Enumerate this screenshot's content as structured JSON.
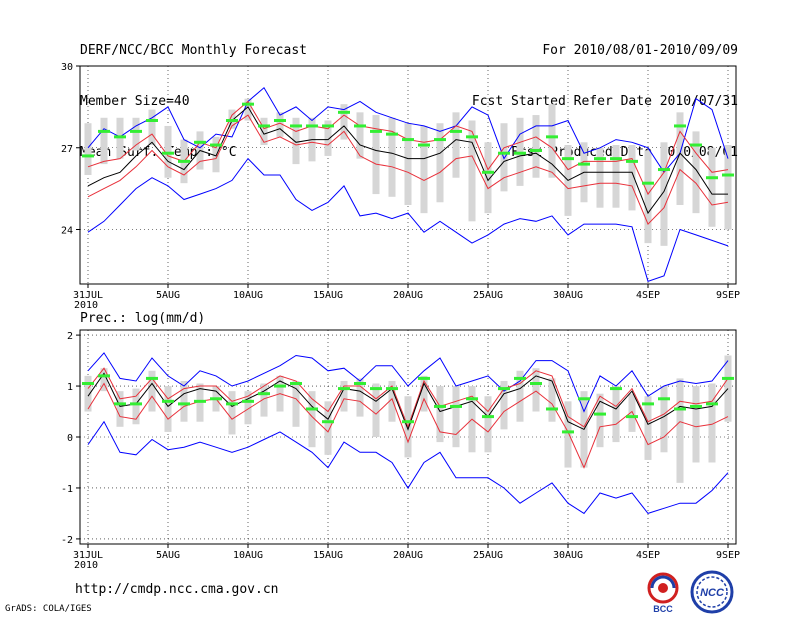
{
  "header": {
    "title": "DERF/NCC/BCC Monthly Forecast",
    "member_size": "Member Size=40",
    "variable": "Mean Surf. Temp.: °C",
    "forecast_period": "For 2010/08/01-2010/09/09",
    "started_refer": "Fcst Started Refer Date 2010/07/31",
    "produced": "Fcst Produced Date 2010/08/01"
  },
  "footer": {
    "url": "http://cmdp.ncc.cma.gov.cn",
    "grads": "GrADS: COLA/IGES",
    "logo_bcc_text": "BCC",
    "logo_ncc_text": "NCC"
  },
  "colors": {
    "blue": "#0000ff",
    "red": "#e8303a",
    "black": "#000000",
    "green": "#33ee33",
    "gray": "#d6d6d6"
  },
  "chart_data": [
    {
      "type": "line",
      "title": "Mean Surf. Temp.: °C",
      "xlabel": "",
      "ylabel": "",
      "x_ticks": [
        "31JUL",
        "5AUG",
        "10AUG",
        "15AUG",
        "20AUG",
        "25AUG",
        "30AUG",
        "4SEP",
        "9SEP"
      ],
      "x_year": "2010",
      "yticks": [
        24,
        27,
        30
      ],
      "ylim": [
        22,
        30
      ],
      "n_days": 41,
      "series": [
        {
          "name": "max",
          "color": "blue",
          "values": [
            27.0,
            27.7,
            27.4,
            27.8,
            28.1,
            28.5,
            27.3,
            27.0,
            27.5,
            27.4,
            28.7,
            29.2,
            28.2,
            28.5,
            28.0,
            28.5,
            28.4,
            28.7,
            28.3,
            28.1,
            27.9,
            27.8,
            27.6,
            27.8,
            28.5,
            28.2,
            26.6,
            27.5,
            27.8,
            27.8,
            28.0,
            26.8,
            27.0,
            27.3,
            27.2,
            27.0,
            26.1,
            26.8,
            28.8,
            28.4,
            26.6
          ]
        },
        {
          "name": "upper",
          "color": "red",
          "values": [
            26.3,
            26.5,
            26.6,
            27.1,
            27.5,
            26.7,
            26.5,
            27.2,
            27.0,
            28.2,
            28.7,
            27.7,
            27.9,
            27.6,
            27.8,
            27.7,
            28.2,
            27.8,
            27.7,
            27.6,
            27.3,
            27.2,
            27.3,
            27.8,
            27.6,
            26.2,
            27.0,
            27.2,
            27.4,
            27.0,
            26.2,
            26.5,
            26.5,
            26.5,
            26.6,
            25.3,
            26.1,
            27.6,
            26.8,
            26.1,
            26.2
          ]
        },
        {
          "name": "mean",
          "color": "black",
          "values": [
            25.6,
            25.9,
            26.1,
            26.7,
            27.2,
            26.5,
            26.2,
            26.9,
            26.7,
            28.0,
            28.5,
            27.5,
            27.7,
            27.2,
            27.3,
            27.3,
            27.8,
            27.1,
            26.9,
            26.8,
            26.6,
            26.6,
            26.8,
            27.3,
            27.2,
            25.8,
            26.5,
            26.7,
            26.8,
            26.4,
            25.8,
            26.1,
            26.1,
            26.1,
            26.1,
            24.6,
            25.4,
            26.8,
            26.2,
            25.3,
            25.3
          ]
        },
        {
          "name": "lower",
          "color": "red",
          "values": [
            25.2,
            25.5,
            25.8,
            26.3,
            26.9,
            26.3,
            26.0,
            26.5,
            26.6,
            27.8,
            28.2,
            27.2,
            27.4,
            27.1,
            27.2,
            27.1,
            27.6,
            26.7,
            26.4,
            26.3,
            26.1,
            25.8,
            26.1,
            26.6,
            26.7,
            25.5,
            25.9,
            26.1,
            26.3,
            26.1,
            25.5,
            25.6,
            25.7,
            25.7,
            25.6,
            24.2,
            24.8,
            26.2,
            25.7,
            24.9,
            25.0
          ]
        },
        {
          "name": "min",
          "color": "blue",
          "values": [
            23.9,
            24.3,
            24.9,
            25.5,
            25.9,
            25.6,
            25.1,
            25.3,
            25.5,
            25.8,
            26.6,
            26.0,
            26.0,
            25.1,
            24.7,
            25.0,
            25.6,
            24.5,
            24.6,
            24.4,
            24.6,
            23.9,
            24.3,
            23.9,
            23.5,
            23.8,
            24.2,
            24.4,
            24.3,
            24.5,
            23.8,
            24.2,
            24.2,
            24.2,
            24.1,
            22.1,
            22.3,
            24.0,
            23.8,
            23.6,
            23.4
          ]
        },
        {
          "name": "median",
          "color": "green",
          "values": [
            26.7,
            27.6,
            27.4,
            27.6,
            28.0,
            26.8,
            26.5,
            27.2,
            27.1,
            28.0,
            28.6,
            27.8,
            28.0,
            27.8,
            27.8,
            27.8,
            28.3,
            27.8,
            27.6,
            27.5,
            27.3,
            27.1,
            27.3,
            27.6,
            27.4,
            26.1,
            26.8,
            26.8,
            26.9,
            27.4,
            26.6,
            26.4,
            26.6,
            26.6,
            26.5,
            25.7,
            26.2,
            27.8,
            27.1,
            25.9,
            26.0
          ]
        }
      ],
      "range_bars": {
        "color": "gray",
        "low": [
          26.0,
          26.4,
          26.6,
          26.9,
          27.1,
          25.9,
          25.7,
          26.2,
          26.1,
          27.7,
          28.0,
          27.1,
          27.4,
          26.4,
          26.5,
          26.7,
          27.3,
          26.6,
          25.3,
          25.2,
          24.9,
          24.6,
          25.0,
          25.9,
          24.3,
          24.6,
          25.4,
          25.6,
          25.9,
          25.9,
          24.5,
          25.0,
          24.8,
          24.8,
          24.7,
          23.5,
          23.4,
          24.9,
          24.6,
          24.1,
          24.0
        ],
        "high": [
          27.9,
          28.1,
          28.1,
          28.1,
          28.4,
          27.8,
          27.3,
          27.6,
          27.4,
          28.4,
          28.8,
          28.1,
          28.3,
          28.1,
          28.1,
          28.0,
          28.6,
          28.3,
          28.2,
          28.1,
          27.9,
          27.8,
          27.9,
          28.3,
          28.0,
          27.2,
          27.9,
          28.1,
          28.2,
          28.6,
          27.1,
          27.2,
          27.0,
          27.1,
          27.1,
          26.9,
          27.2,
          28.3,
          27.6,
          27.0,
          27.1
        ]
      }
    },
    {
      "type": "line",
      "title": "Prec.: log(mm/d)",
      "xlabel": "",
      "ylabel": "",
      "x_ticks": [
        "31JUL",
        "5AUG",
        "10AUG",
        "15AUG",
        "20AUG",
        "25AUG",
        "30AUG",
        "4SEP",
        "9SEP"
      ],
      "x_year": "2010",
      "yticks": [
        -2,
        -1,
        0,
        1,
        2
      ],
      "ylim": [
        -2.1,
        2.1
      ],
      "n_days": 41,
      "series": [
        {
          "name": "max",
          "color": "blue",
          "values": [
            1.3,
            1.65,
            1.15,
            1.1,
            1.55,
            1.2,
            1.0,
            1.3,
            1.2,
            1.0,
            1.1,
            1.25,
            1.4,
            1.6,
            1.55,
            1.3,
            1.35,
            1.1,
            1.4,
            1.4,
            1.0,
            1.3,
            1.55,
            1.0,
            1.1,
            1.2,
            0.9,
            1.1,
            1.5,
            1.5,
            1.3,
            0.5,
            1.2,
            1.0,
            1.3,
            0.8,
            1.0,
            1.1,
            1.05,
            1.1,
            1.5
          ]
        },
        {
          "name": "upper",
          "color": "red",
          "values": [
            0.95,
            1.35,
            0.75,
            0.8,
            1.15,
            0.75,
            0.95,
            1.0,
            1.0,
            0.7,
            0.8,
            1.0,
            1.2,
            1.1,
            0.75,
            0.5,
            1.0,
            1.0,
            0.75,
            1.0,
            0.2,
            1.1,
            0.6,
            0.7,
            0.8,
            0.5,
            0.95,
            1.05,
            1.3,
            1.2,
            0.4,
            0.2,
            0.8,
            0.6,
            0.95,
            0.3,
            0.45,
            0.7,
            0.65,
            0.7,
            1.15
          ]
        },
        {
          "name": "mean",
          "color": "black",
          "values": [
            0.8,
            1.25,
            0.6,
            0.65,
            1.05,
            0.6,
            0.85,
            0.95,
            0.9,
            0.6,
            0.75,
            0.9,
            1.1,
            0.95,
            0.6,
            0.35,
            0.95,
            0.9,
            0.7,
            0.95,
            0.15,
            1.05,
            0.5,
            0.6,
            0.7,
            0.4,
            0.85,
            0.95,
            1.2,
            1.1,
            0.3,
            0.15,
            0.7,
            0.55,
            0.9,
            0.25,
            0.4,
            0.6,
            0.55,
            0.6,
            0.95
          ]
        },
        {
          "name": "lower",
          "color": "red",
          "values": [
            0.55,
            1.05,
            0.4,
            0.35,
            0.8,
            0.35,
            0.6,
            0.7,
            0.75,
            0.35,
            0.55,
            0.75,
            0.85,
            0.75,
            0.4,
            0.1,
            0.75,
            0.7,
            0.45,
            0.75,
            -0.1,
            0.75,
            0.1,
            0.05,
            0.35,
            0.1,
            0.5,
            0.7,
            0.9,
            0.65,
            0.1,
            -0.6,
            0.2,
            0.25,
            0.5,
            -0.15,
            0.0,
            0.3,
            0.2,
            0.25,
            0.4
          ]
        },
        {
          "name": "min",
          "color": "blue",
          "values": [
            -0.15,
            0.3,
            -0.3,
            -0.35,
            -0.05,
            -0.25,
            -0.2,
            -0.1,
            -0.2,
            -0.3,
            -0.2,
            -0.05,
            0.1,
            -0.1,
            -0.3,
            -0.6,
            -0.1,
            -0.3,
            -0.3,
            -0.5,
            -1.0,
            -0.5,
            -0.3,
            -0.8,
            -0.8,
            -0.8,
            -1.0,
            -1.3,
            -1.1,
            -0.9,
            -1.3,
            -1.5,
            -1.1,
            -1.2,
            -1.1,
            -1.5,
            -1.4,
            -1.3,
            -1.3,
            -1.05,
            -0.7
          ]
        },
        {
          "name": "median",
          "color": "green",
          "values": [
            1.05,
            1.2,
            0.65,
            0.65,
            1.15,
            0.7,
            0.65,
            0.7,
            0.75,
            0.65,
            0.7,
            0.85,
            1.0,
            1.05,
            0.55,
            0.3,
            0.95,
            1.05,
            0.95,
            0.95,
            0.3,
            1.15,
            0.6,
            0.6,
            0.75,
            0.4,
            0.95,
            1.15,
            1.05,
            0.55,
            0.1,
            0.75,
            0.45,
            0.95,
            0.4,
            0.65,
            0.75,
            0.55,
            0.6,
            0.65,
            1.15
          ]
        }
      ],
      "range_bars": {
        "color": "gray",
        "low": [
          0.5,
          0.9,
          0.2,
          0.25,
          0.5,
          0.1,
          0.3,
          0.3,
          0.5,
          0.05,
          0.25,
          0.4,
          0.5,
          0.2,
          -0.2,
          -0.35,
          0.5,
          0.4,
          0.0,
          0.3,
          -0.4,
          0.5,
          -0.1,
          -0.2,
          -0.3,
          -0.3,
          0.15,
          0.3,
          0.5,
          0.3,
          -0.6,
          -0.6,
          -0.2,
          -0.1,
          0.1,
          -0.45,
          -0.3,
          -0.9,
          -0.5,
          -0.5,
          0.3
        ],
        "high": [
          1.2,
          1.35,
          0.9,
          0.95,
          1.3,
          1.0,
          1.1,
          1.05,
          1.0,
          0.9,
          0.9,
          1.05,
          1.2,
          1.1,
          0.9,
          0.7,
          1.1,
          1.15,
          1.05,
          1.1,
          0.8,
          1.2,
          1.0,
          1.0,
          1.0,
          0.8,
          1.1,
          1.3,
          1.35,
          1.15,
          0.7,
          0.9,
          0.85,
          1.0,
          0.85,
          0.8,
          1.0,
          1.15,
          1.0,
          1.05,
          1.6
        ]
      }
    }
  ]
}
